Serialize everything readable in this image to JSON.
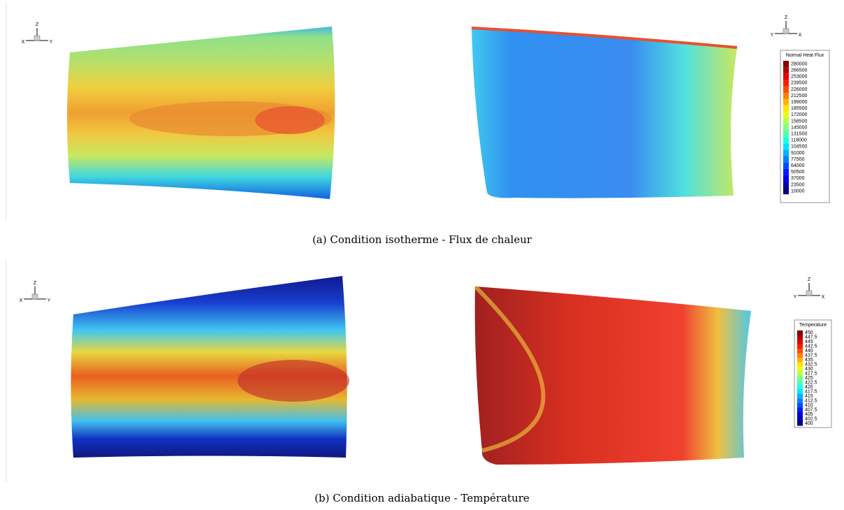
{
  "panels": [
    {
      "caption": "(a) Condition isotherme - Flux de chaleur",
      "triad_left": {
        "z": "Z",
        "x": "X",
        "y": "Y"
      },
      "triad_right": {
        "z": "Z",
        "x": "X",
        "y": "Y"
      },
      "legend": {
        "title": "Normal Heat Flux",
        "levels": [
          280000,
          266500,
          253000,
          239500,
          226000,
          212500,
          199000,
          185500,
          172000,
          158500,
          145000,
          131500,
          118000,
          104500,
          91000,
          77500,
          64000,
          50500,
          37000,
          23500,
          10000
        ]
      }
    },
    {
      "caption": "(b) Condition adiabatique - Température",
      "triad_left": {
        "z": "Z",
        "x": "X",
        "y": "Y"
      },
      "triad_right": {
        "z": "Z",
        "x": "X",
        "y": "Y"
      },
      "legend": {
        "title": "Temperature",
        "levels": [
          450,
          447.5,
          445,
          442.5,
          440,
          437.5,
          435,
          432.5,
          430,
          427.5,
          425,
          422.5,
          420,
          417.5,
          415,
          412.5,
          410,
          407.5,
          405,
          402.5,
          400
        ]
      }
    }
  ]
}
